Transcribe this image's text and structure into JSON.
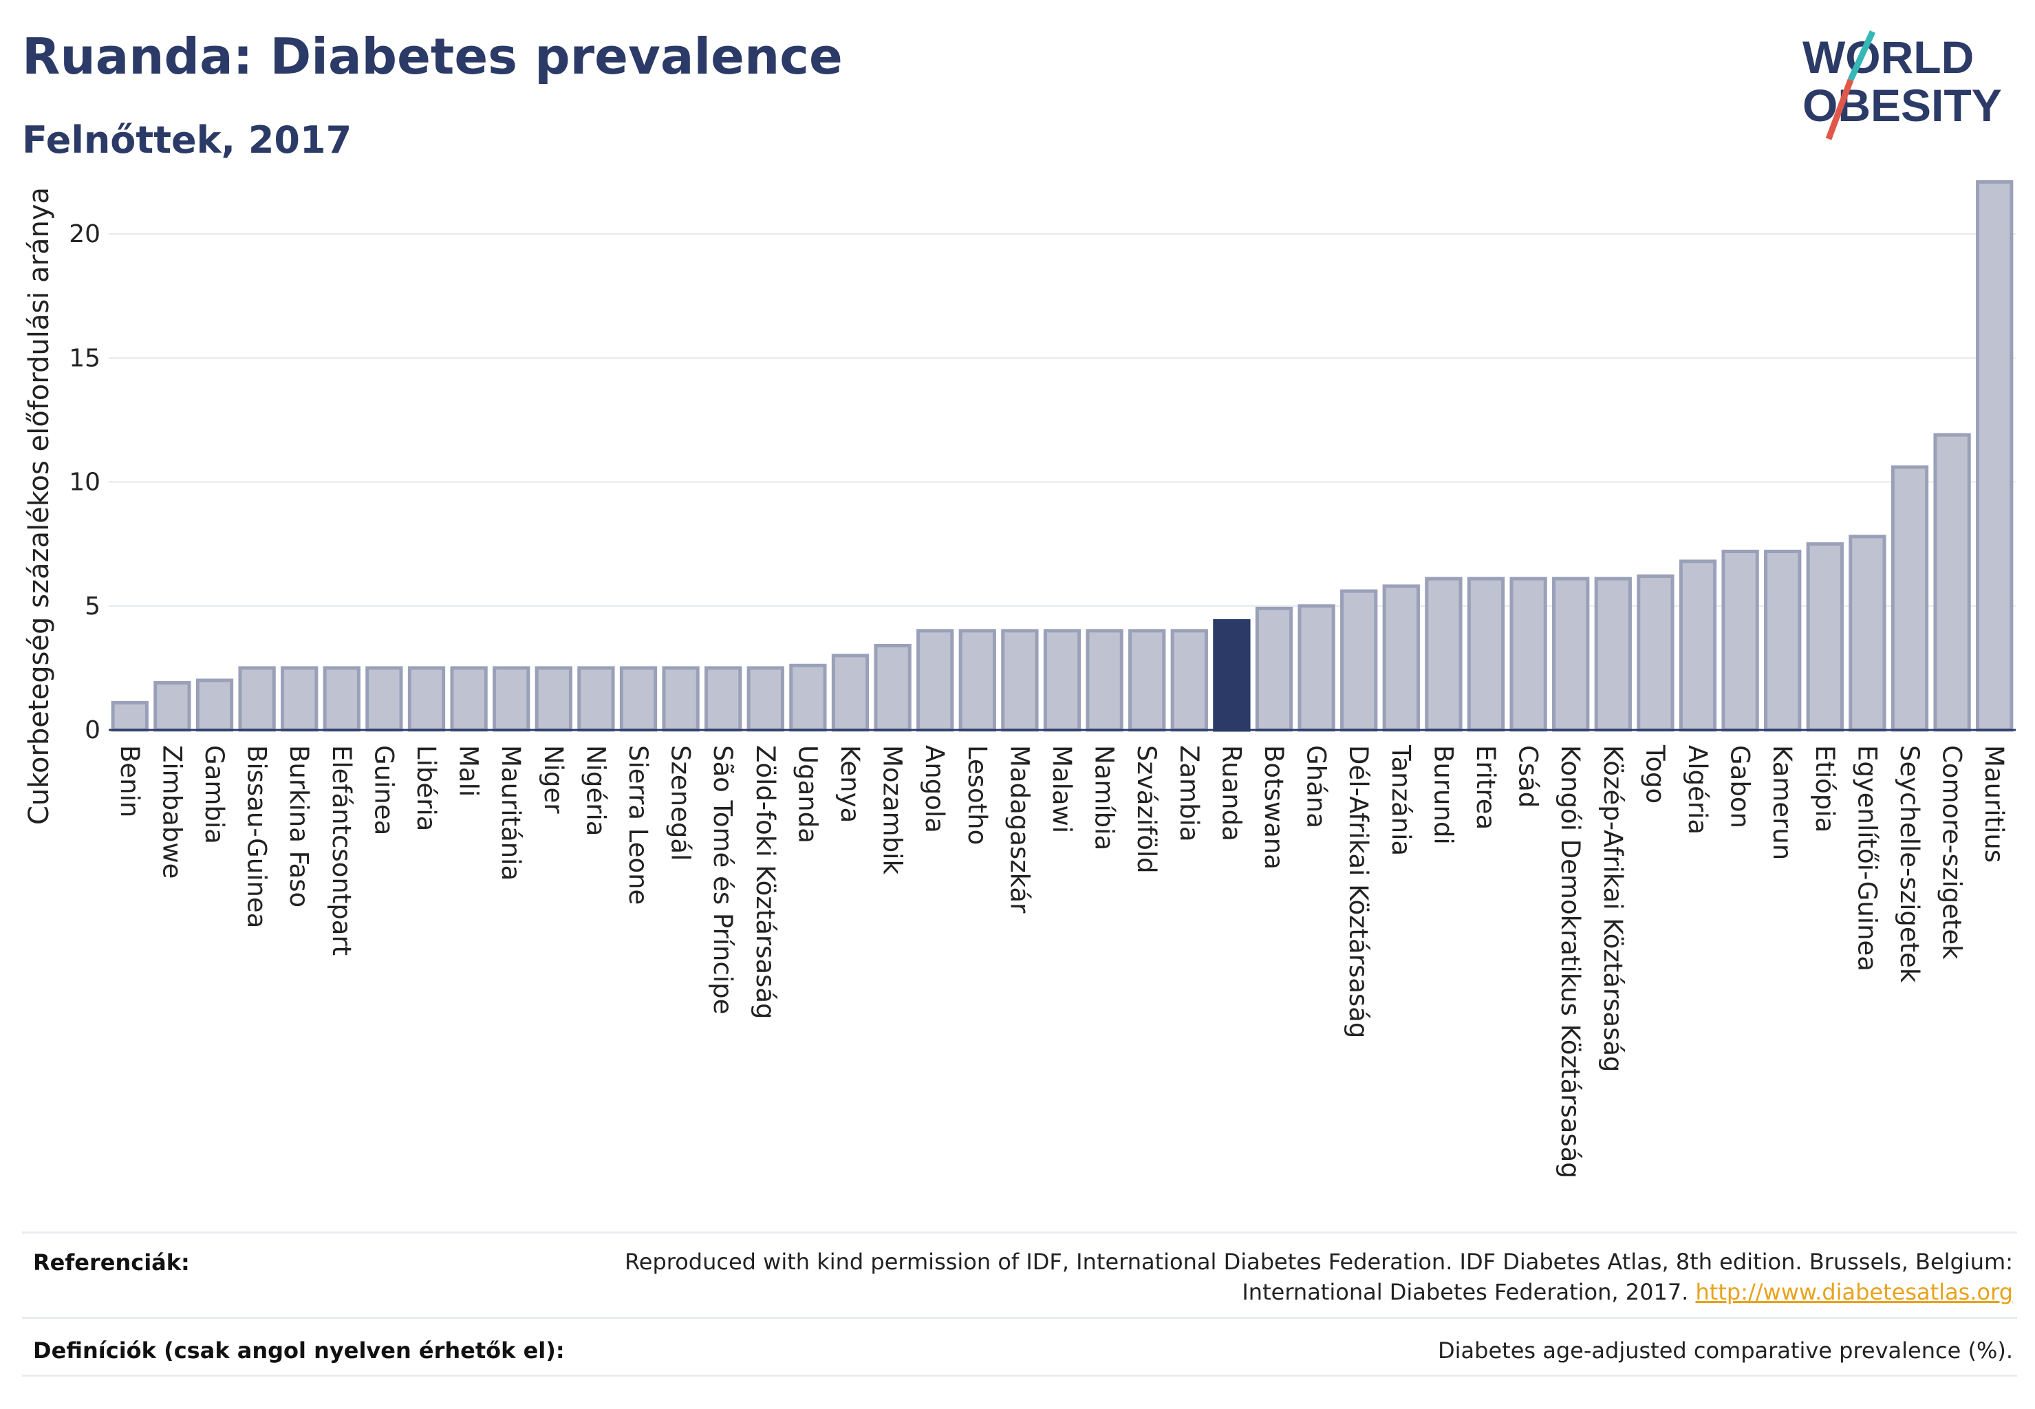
{
  "header": {
    "title": "Ruanda: Diabetes prevalence",
    "subtitle": "Felnőttek, 2017",
    "logo_text_line1": "WORLD",
    "logo_text_line2": "OBESITY"
  },
  "chart_data": {
    "type": "bar",
    "ylabel": "Cukorbetegség százalékos előfordulási aránya",
    "xlabel": "",
    "ylim": [
      0,
      22.5
    ],
    "yticks": [
      0,
      5,
      10,
      15,
      20
    ],
    "grid": true,
    "highlight": "Ruanda",
    "colors": {
      "bar": "#bfc3d1",
      "bar_edge": "#9aa0b8",
      "highlight": "#2b3a66",
      "axis": "#2b3a66",
      "grid": "#e4e7ee"
    },
    "categories": [
      "Benin",
      "Zimbabwe",
      "Gambia",
      "Bissau-Guinea",
      "Burkina Faso",
      "Elefántcsontpart",
      "Guinea",
      "Libéria",
      "Mali",
      "Mauritánia",
      "Niger",
      "Nigéria",
      "Sierra Leone",
      "Szenegál",
      "São Tomé és Príncipe",
      "Zöld-foki Köztársaság",
      "Uganda",
      "Kenya",
      "Mozambik",
      "Angola",
      "Lesotho",
      "Madagaszkár",
      "Malawi",
      "Namíbia",
      "Szváziföld",
      "Zambia",
      "Ruanda",
      "Botswana",
      "Ghána",
      "Dél-Afrikai Köztársaság",
      "Tanzánia",
      "Burundi",
      "Eritrea",
      "Csád",
      "Kongói Demokratikus Köztársaság",
      "Közép-Afrikai Köztársaság",
      "Togo",
      "Algéria",
      "Gabon",
      "Kamerun",
      "Etiópia",
      "Egyenlítői-Guinea",
      "Seychelle-szigetek",
      "Comore-szigetek",
      "Mauritius"
    ],
    "values": [
      1.1,
      1.9,
      2.0,
      2.5,
      2.5,
      2.5,
      2.5,
      2.5,
      2.5,
      2.5,
      2.5,
      2.5,
      2.5,
      2.5,
      2.5,
      2.5,
      2.6,
      3.0,
      3.4,
      4.0,
      4.0,
      4.0,
      4.0,
      4.0,
      4.0,
      4.0,
      4.4,
      4.9,
      5.0,
      5.6,
      5.8,
      6.1,
      6.1,
      6.1,
      6.1,
      6.1,
      6.2,
      6.8,
      7.2,
      7.2,
      7.5,
      7.8,
      10.6,
      11.9,
      22.1
    ]
  },
  "footer": {
    "ref_label": "Referenciák:",
    "ref_text": "Reproduced with kind permission of IDF, International Diabetes Federation. IDF Diabetes Atlas, 8th edition. Brussels, Belgium: International Diabetes Federation, 2017.",
    "ref_link": "http://www.diabetesatlas.org",
    "def_label": "Definíciók (csak angol nyelven érhetők el):",
    "def_text": "Diabetes age-adjusted comparative prevalence (%)."
  }
}
